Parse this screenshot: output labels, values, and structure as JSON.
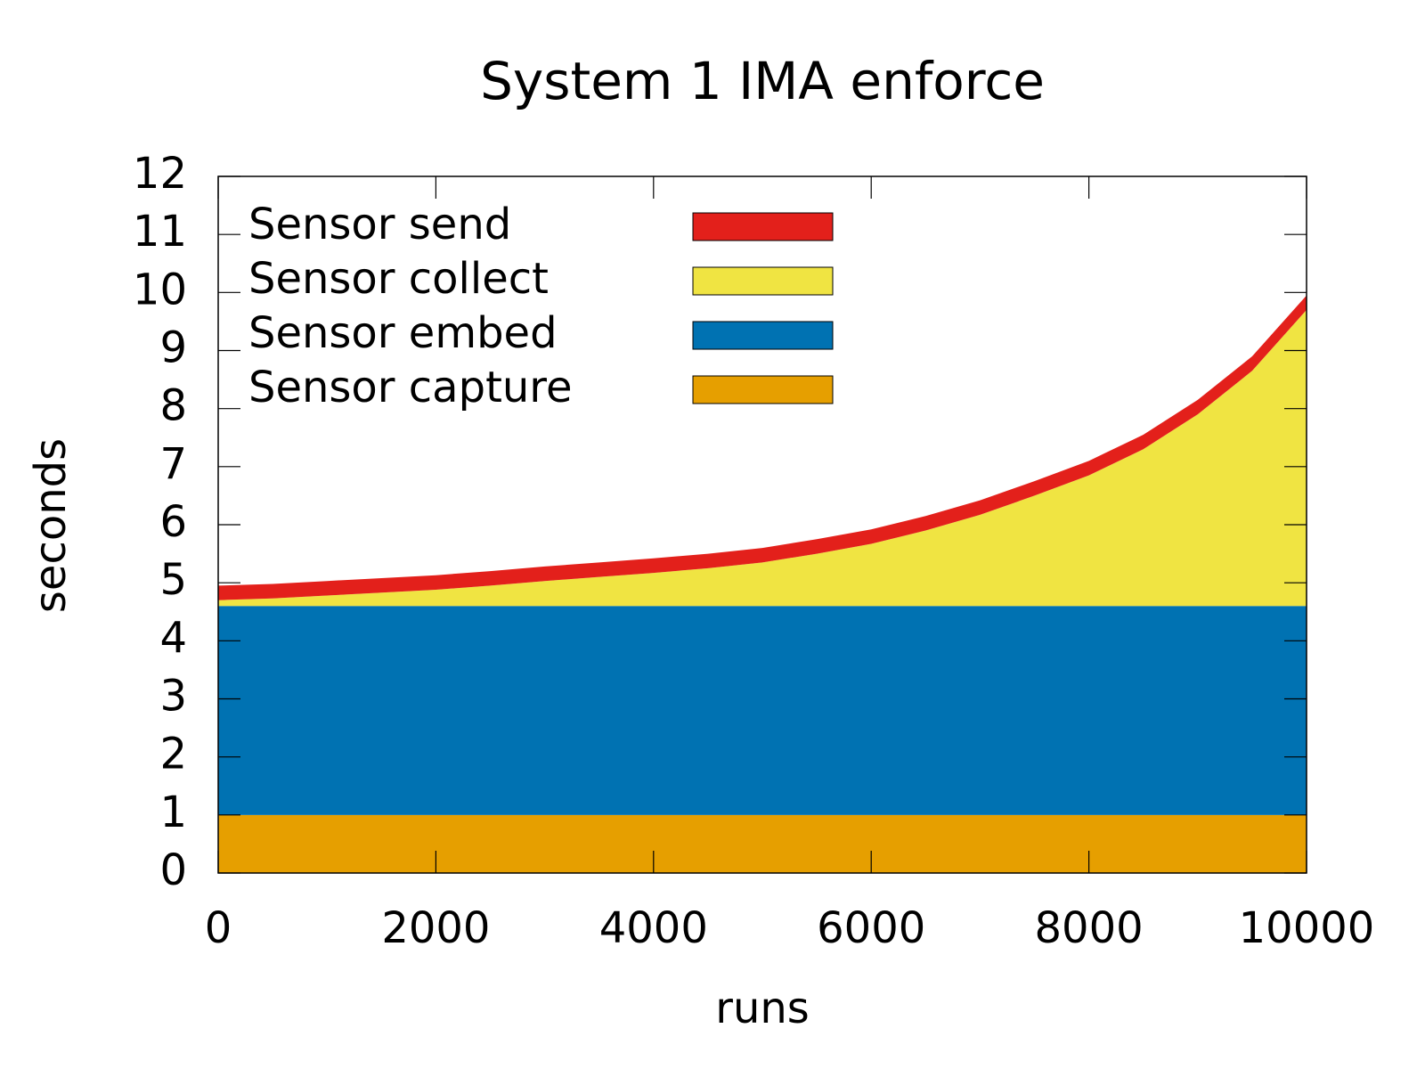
{
  "chart_data": {
    "type": "stacked-area",
    "title": "System 1 IMA enforce",
    "x_label": "runs",
    "y_label": "seconds",
    "x": [
      0,
      500,
      1000,
      1500,
      2000,
      2500,
      3000,
      3500,
      4000,
      4500,
      5000,
      5500,
      6000,
      6500,
      7000,
      7500,
      8000,
      8500,
      9000,
      9500,
      10000
    ],
    "series": [
      {
        "name": "Sensor capture",
        "color": "#e69f00",
        "values": [
          1.0,
          1.0,
          1.0,
          1.0,
          1.0,
          1.0,
          1.0,
          1.0,
          1.0,
          1.0,
          1.0,
          1.0,
          1.0,
          1.0,
          1.0,
          1.0,
          1.0,
          1.0,
          1.0,
          1.0,
          1.0
        ]
      },
      {
        "name": "Sensor embed",
        "color": "#0072b2",
        "values": [
          3.6,
          3.6,
          3.6,
          3.6,
          3.6,
          3.6,
          3.6,
          3.6,
          3.6,
          3.6,
          3.6,
          3.6,
          3.6,
          3.6,
          3.6,
          3.6,
          3.6,
          3.6,
          3.6,
          3.6,
          3.6
        ]
      },
      {
        "name": "Sensor collect",
        "color": "#f0e442",
        "values": [
          0.1,
          0.13,
          0.18,
          0.23,
          0.28,
          0.35,
          0.43,
          0.5,
          0.57,
          0.65,
          0.75,
          0.9,
          1.07,
          1.3,
          1.57,
          1.9,
          2.25,
          2.7,
          3.3,
          4.05,
          5.1
        ]
      },
      {
        "name": "Sensor send",
        "color": "#e3201b",
        "values": [
          0.25,
          0.25,
          0.25,
          0.25,
          0.25,
          0.25,
          0.25,
          0.25,
          0.25,
          0.25,
          0.25,
          0.25,
          0.25,
          0.25,
          0.25,
          0.25,
          0.25,
          0.25,
          0.25,
          0.25,
          0.25
        ]
      }
    ],
    "xlim": [
      0,
      10000
    ],
    "xticks": [
      0,
      2000,
      4000,
      6000,
      8000,
      10000
    ],
    "ylim": [
      0,
      12
    ],
    "yticks": [
      0,
      1,
      2,
      3,
      4,
      5,
      6,
      7,
      8,
      9,
      10,
      11,
      12
    ],
    "legend": "top-left"
  }
}
